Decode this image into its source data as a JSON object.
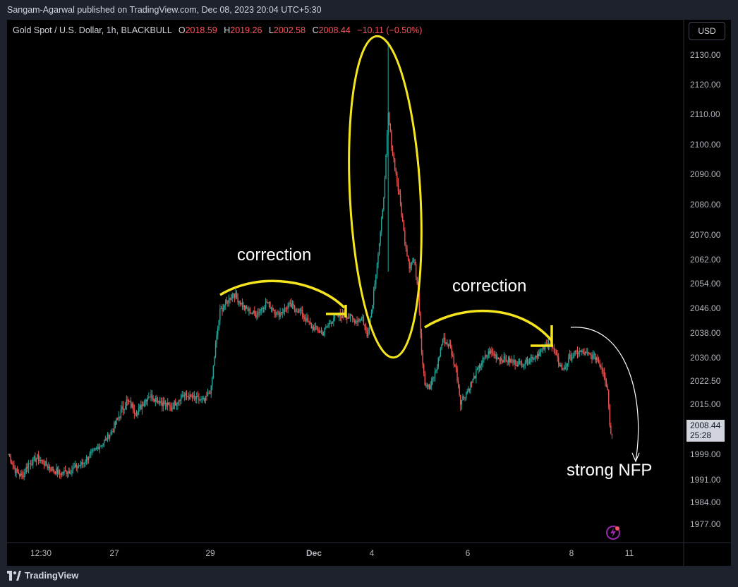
{
  "header": {
    "publisher_line": "Sangam-Agarwal published on TradingView.com, Dec 08, 2023 20:04 UTC+5:30"
  },
  "legend": {
    "symbol": "Gold Spot / U.S. Dollar, 1h, BLACKBULL",
    "o_label": "O",
    "o_value": "2018.59",
    "h_label": "H",
    "h_value": "2019.26",
    "l_label": "L",
    "l_value": "2002.58",
    "c_label": "C",
    "c_value": "2008.44",
    "change": "−10.11 (−0.50%)"
  },
  "currency_button": "USD",
  "last_price": {
    "price": "2008.44",
    "countdown": "25:28"
  },
  "annotations": {
    "correction_1": "correction",
    "correction_2": "correction",
    "strong_nfp": "strong NFP"
  },
  "footer": {
    "brand": "TradingView"
  },
  "colors": {
    "up": "#26a69a",
    "down": "#ef5350",
    "highlight": "#f5e51f",
    "background": "#000000"
  },
  "chart_data": {
    "type": "candlestick",
    "title": "Gold Spot / U.S. Dollar, 1h, BLACKBULL",
    "y_ticks": [
      "2130.00",
      "2120.00",
      "2110.00",
      "2100.00",
      "2090.00",
      "2080.00",
      "2070.00",
      "2062.00",
      "2054.00",
      "2046.00",
      "2038.00",
      "2030.00",
      "2022.50",
      "2015.00",
      "1999.00",
      "1991.00",
      "1984.00",
      "1977.00"
    ],
    "x_ticks": [
      "12:30",
      "27",
      "29",
      "Dec",
      "4",
      "6",
      "8",
      "11"
    ],
    "ylim": [
      1970,
      2137
    ],
    "path_waypoints": [
      [
        0,
        1999
      ],
      [
        6,
        1994
      ],
      [
        12,
        1992
      ],
      [
        18,
        1996
      ],
      [
        26,
        1998
      ],
      [
        36,
        1995
      ],
      [
        46,
        1993
      ],
      [
        56,
        1994
      ],
      [
        66,
        1996
      ],
      [
        76,
        2000
      ],
      [
        86,
        2004
      ],
      [
        96,
        2010
      ],
      [
        106,
        2016
      ],
      [
        116,
        2013
      ],
      [
        126,
        2018
      ],
      [
        136,
        2016
      ],
      [
        146,
        2014
      ],
      [
        156,
        2018
      ],
      [
        166,
        2017
      ],
      [
        176,
        2016
      ],
      [
        182,
        2020
      ],
      [
        186,
        2034
      ],
      [
        190,
        2045
      ],
      [
        196,
        2048
      ],
      [
        202,
        2051
      ],
      [
        212,
        2046
      ],
      [
        222,
        2044
      ],
      [
        232,
        2048
      ],
      [
        242,
        2044
      ],
      [
        252,
        2047
      ],
      [
        262,
        2045
      ],
      [
        272,
        2040
      ],
      [
        282,
        2038
      ],
      [
        292,
        2043
      ],
      [
        302,
        2044
      ],
      [
        312,
        2042
      ],
      [
        318,
        2043
      ],
      [
        322,
        2037
      ],
      [
        326,
        2045
      ],
      [
        330,
        2058
      ],
      [
        334,
        2070
      ],
      [
        338,
        2088
      ],
      [
        341,
        2110
      ],
      [
        344,
        2100
      ],
      [
        348,
        2090
      ],
      [
        352,
        2080
      ],
      [
        356,
        2068
      ],
      [
        360,
        2060
      ],
      [
        364,
        2062
      ],
      [
        368,
        2052
      ],
      [
        371,
        2032
      ],
      [
        374,
        2022
      ],
      [
        378,
        2020
      ],
      [
        384,
        2026
      ],
      [
        390,
        2036
      ],
      [
        396,
        2034
      ],
      [
        402,
        2026
      ],
      [
        406,
        2016
      ],
      [
        410,
        2018
      ],
      [
        416,
        2022
      ],
      [
        424,
        2028
      ],
      [
        432,
        2032
      ],
      [
        440,
        2030
      ],
      [
        450,
        2029
      ],
      [
        460,
        2028
      ],
      [
        470,
        2030
      ],
      [
        478,
        2032
      ],
      [
        486,
        2035
      ],
      [
        492,
        2030
      ],
      [
        498,
        2026
      ],
      [
        504,
        2030
      ],
      [
        512,
        2032
      ],
      [
        520,
        2031
      ],
      [
        528,
        2030
      ],
      [
        534,
        2026
      ],
      [
        538,
        2020
      ],
      [
        540,
        2010
      ],
      [
        542,
        2006
      ]
    ],
    "intraday_extremes": {
      "high": 2134.5,
      "low": 2002.58
    },
    "last_close": 2008.44
  }
}
